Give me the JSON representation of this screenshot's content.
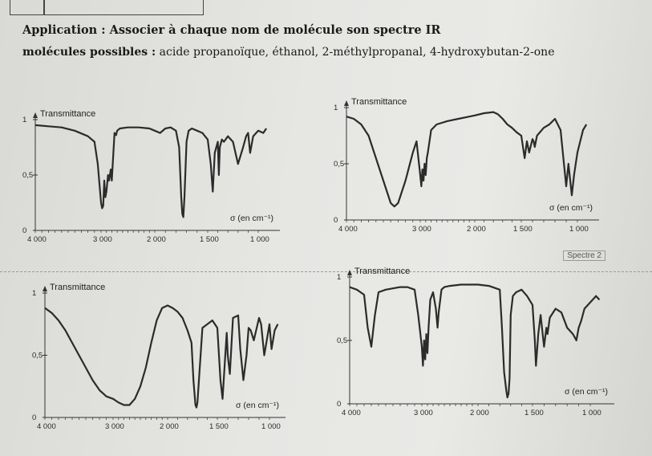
{
  "page": {
    "heading": "Application : Associer à chaque nom de molécule son spectre IR",
    "molecules_label": "molécules possibles :",
    "molecules_list": "acide propanoïque, éthanol, 2-méthylpropanal, 4-hydroxybutan-2-one"
  },
  "spectre_tag": "Spectre 2",
  "chart_data": [
    {
      "type": "line",
      "ylabel": "Transmittance",
      "xlabel": "σ (en cm⁻¹)",
      "x_ticks": [
        "4 000",
        "3 000",
        "2 000",
        "1 500",
        "1 000"
      ],
      "y_ticks": [
        "0",
        "0,5",
        "1"
      ],
      "xlim": [
        4000,
        900
      ],
      "ylim": [
        0,
        1
      ],
      "series": [
        {
          "x": [
            4000,
            3800,
            3600,
            3400,
            3200,
            3100,
            3050,
            3000,
            2980,
            2960,
            2940,
            2920,
            2900,
            2870,
            2850,
            2820,
            2800,
            2750,
            2720,
            2700,
            2650,
            2500,
            2300,
            2100,
            2000,
            1950,
            1900,
            1850,
            1800,
            1770,
            1750,
            1740,
            1730,
            1720,
            1700,
            1680,
            1650,
            1600,
            1550,
            1500,
            1470,
            1450,
            1430,
            1400,
            1390,
            1380,
            1360,
            1340,
            1300,
            1250,
            1200,
            1150,
            1120,
            1100,
            1080,
            1050,
            1000,
            950,
            920
          ],
          "y": [
            0.95,
            0.94,
            0.93,
            0.9,
            0.85,
            0.8,
            0.6,
            0.25,
            0.2,
            0.22,
            0.45,
            0.3,
            0.35,
            0.5,
            0.45,
            0.55,
            0.45,
            0.88,
            0.86,
            0.9,
            0.92,
            0.93,
            0.93,
            0.92,
            0.9,
            0.88,
            0.92,
            0.93,
            0.9,
            0.75,
            0.3,
            0.15,
            0.12,
            0.3,
            0.8,
            0.9,
            0.92,
            0.9,
            0.88,
            0.82,
            0.6,
            0.35,
            0.7,
            0.8,
            0.5,
            0.75,
            0.82,
            0.8,
            0.85,
            0.8,
            0.6,
            0.75,
            0.85,
            0.88,
            0.7,
            0.85,
            0.9,
            0.88,
            0.92
          ]
        }
      ]
    },
    {
      "type": "line",
      "ylabel": "Transmittance",
      "xlabel": "σ (en cm⁻¹)",
      "x_ticks": [
        "4 000",
        "3 000",
        "2 000",
        "1 500",
        "1 000"
      ],
      "y_ticks": [
        "0",
        "0,5",
        "1"
      ],
      "xlim": [
        4000,
        900
      ],
      "ylim": [
        0,
        1
      ],
      "series": [
        {
          "x": [
            4000,
            3900,
            3800,
            3700,
            3600,
            3500,
            3450,
            3400,
            3350,
            3300,
            3200,
            3100,
            3050,
            3000,
            2980,
            2960,
            2940,
            2920,
            2900,
            2880,
            2860,
            2800,
            2700,
            2500,
            2300,
            2100,
            2000,
            1900,
            1800,
            1750,
            1700,
            1650,
            1600,
            1550,
            1500,
            1470,
            1450,
            1430,
            1400,
            1390,
            1380,
            1360,
            1300,
            1250,
            1200,
            1150,
            1120,
            1100,
            1080,
            1050,
            1030,
            1000,
            950,
            920
          ],
          "y": [
            0.92,
            0.9,
            0.85,
            0.75,
            0.55,
            0.35,
            0.25,
            0.15,
            0.12,
            0.15,
            0.35,
            0.6,
            0.7,
            0.4,
            0.3,
            0.45,
            0.35,
            0.5,
            0.4,
            0.55,
            0.6,
            0.8,
            0.85,
            0.88,
            0.9,
            0.92,
            0.93,
            0.95,
            0.96,
            0.94,
            0.9,
            0.85,
            0.82,
            0.78,
            0.75,
            0.55,
            0.7,
            0.6,
            0.72,
            0.7,
            0.65,
            0.75,
            0.82,
            0.85,
            0.9,
            0.8,
            0.5,
            0.3,
            0.5,
            0.22,
            0.4,
            0.6,
            0.8,
            0.85
          ]
        }
      ]
    },
    {
      "type": "line",
      "ylabel": "Transmittance",
      "xlabel": "σ (en cm⁻¹)",
      "x_ticks": [
        "4 000",
        "3 000",
        "2 000",
        "1 500",
        "1 000"
      ],
      "y_ticks": [
        "0",
        "0,5",
        "1"
      ],
      "xlim": [
        4000,
        900
      ],
      "ylim": [
        0,
        1
      ],
      "series": [
        {
          "x": [
            4000,
            3900,
            3800,
            3700,
            3600,
            3500,
            3400,
            3300,
            3200,
            3100,
            3000,
            2900,
            2800,
            2700,
            2600,
            2500,
            2400,
            2300,
            2200,
            2100,
            2000,
            1950,
            1900,
            1850,
            1800,
            1760,
            1740,
            1720,
            1710,
            1700,
            1650,
            1600,
            1550,
            1500,
            1470,
            1450,
            1420,
            1410,
            1400,
            1380,
            1350,
            1300,
            1280,
            1250,
            1220,
            1200,
            1180,
            1150,
            1100,
            1080,
            1050,
            1020,
            1000,
            980,
            950,
            920
          ],
          "y": [
            0.88,
            0.84,
            0.78,
            0.7,
            0.6,
            0.5,
            0.4,
            0.3,
            0.22,
            0.17,
            0.15,
            0.12,
            0.1,
            0.1,
            0.15,
            0.25,
            0.4,
            0.6,
            0.78,
            0.88,
            0.9,
            0.88,
            0.85,
            0.8,
            0.7,
            0.6,
            0.3,
            0.1,
            0.08,
            0.12,
            0.72,
            0.75,
            0.78,
            0.72,
            0.3,
            0.15,
            0.55,
            0.68,
            0.5,
            0.35,
            0.8,
            0.82,
            0.55,
            0.3,
            0.5,
            0.72,
            0.7,
            0.62,
            0.8,
            0.75,
            0.5,
            0.65,
            0.75,
            0.55,
            0.7,
            0.75
          ]
        }
      ]
    },
    {
      "type": "line",
      "ylabel": "Transmittance",
      "xlabel": "σ (en cm⁻¹)",
      "x_ticks": [
        "4 000",
        "3 000",
        "2 000",
        "1 500",
        "1 000"
      ],
      "y_ticks": [
        "0",
        "0,5",
        "1"
      ],
      "xlim": [
        4000,
        900
      ],
      "ylim": [
        0,
        1
      ],
      "series": [
        {
          "x": [
            4000,
            3900,
            3800,
            3750,
            3700,
            3650,
            3600,
            3500,
            3400,
            3300,
            3200,
            3100,
            3050,
            3000,
            2980,
            2960,
            2940,
            2920,
            2900,
            2880,
            2850,
            2800,
            2750,
            2720,
            2700,
            2650,
            2600,
            2500,
            2300,
            2100,
            2000,
            1900,
            1800,
            1780,
            1760,
            1740,
            1730,
            1720,
            1710,
            1700,
            1680,
            1650,
            1600,
            1550,
            1500,
            1480,
            1470,
            1450,
            1430,
            1400,
            1380,
            1370,
            1350,
            1300,
            1250,
            1200,
            1150,
            1120,
            1100,
            1080,
            1050,
            1000,
            950,
            920
          ],
          "y": [
            0.92,
            0.9,
            0.86,
            0.6,
            0.45,
            0.7,
            0.88,
            0.9,
            0.91,
            0.92,
            0.92,
            0.9,
            0.7,
            0.45,
            0.3,
            0.5,
            0.35,
            0.55,
            0.4,
            0.6,
            0.82,
            0.88,
            0.75,
            0.6,
            0.72,
            0.9,
            0.92,
            0.93,
            0.94,
            0.94,
            0.94,
            0.93,
            0.9,
            0.6,
            0.25,
            0.1,
            0.05,
            0.08,
            0.2,
            0.7,
            0.85,
            0.88,
            0.9,
            0.85,
            0.78,
            0.5,
            0.3,
            0.55,
            0.7,
            0.45,
            0.6,
            0.55,
            0.68,
            0.75,
            0.72,
            0.6,
            0.55,
            0.5,
            0.6,
            0.65,
            0.75,
            0.8,
            0.85,
            0.82
          ]
        }
      ]
    }
  ]
}
